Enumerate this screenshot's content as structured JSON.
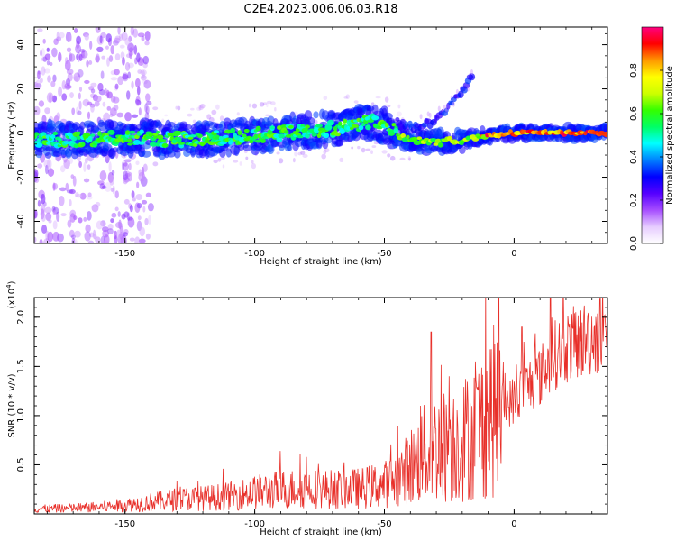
{
  "figure_title": "C2E4.2023.006.06.03.R18",
  "chart_data": [
    {
      "type": "heatmap",
      "xlabel": "Height of straight line (km)",
      "ylabel": "Frequency (Hz)",
      "xlim": [
        -185,
        36
      ],
      "ylim": [
        -50,
        48
      ],
      "x_ticks": [
        -150,
        -100,
        -50,
        0
      ],
      "x_tick_labels": [
        "-150",
        "-100",
        "-50",
        "0"
      ],
      "y_ticks": [
        -40,
        -20,
        0,
        20,
        40
      ],
      "y_tick_labels": [
        "-40",
        "-20",
        "0",
        "20",
        "40"
      ],
      "colorbar": {
        "label": "Normalized spectral amplitude",
        "range": [
          0,
          1
        ],
        "ticks": [
          0.0,
          0.2,
          0.4,
          0.6,
          0.8
        ],
        "tick_labels": [
          "0.0",
          "0.2",
          "0.4",
          "0.6",
          "0.8"
        ],
        "colormap": [
          "#ffffff",
          "#e6ccff",
          "#a64dff",
          "#5500ff",
          "#0000ff",
          "#0080ff",
          "#00ffff",
          "#00ff66",
          "#33ff00",
          "#ccff00",
          "#ffff00",
          "#ff9900",
          "#ff0000",
          "#ff0080"
        ]
      },
      "main_band": [
        [
          -185,
          -3
        ],
        [
          -170,
          -3
        ],
        [
          -150,
          -2
        ],
        [
          -130,
          -3
        ],
        [
          -110,
          -2
        ],
        [
          -90,
          0
        ],
        [
          -70,
          2
        ],
        [
          -60,
          4
        ],
        [
          -55,
          5
        ],
        [
          -48,
          2
        ],
        [
          -42,
          -2
        ],
        [
          -35,
          -4
        ],
        [
          -28,
          -4
        ],
        [
          -20,
          -3
        ],
        [
          -10,
          -1
        ],
        [
          0,
          0
        ],
        [
          10,
          0
        ],
        [
          20,
          0
        ],
        [
          36,
          0
        ]
      ],
      "secondary_branch": [
        [
          -45,
          5
        ],
        [
          -38,
          2
        ],
        [
          -32,
          5
        ],
        [
          -27,
          10
        ],
        [
          -22,
          16
        ],
        [
          -18,
          22
        ],
        [
          -16,
          27
        ]
      ],
      "grid": false
    },
    {
      "type": "line",
      "xlabel": "Height of straight line (km)",
      "ylabel": "SNR (10 * v/v)",
      "y_multiplier": "(x10^4)",
      "xlim": [
        -185,
        36
      ],
      "ylim": [
        0,
        22000
      ],
      "x_ticks": [
        -150,
        -100,
        -50,
        0
      ],
      "x_tick_labels": [
        "-150",
        "-100",
        "-50",
        "0"
      ],
      "y_ticks": [
        5000,
        10000,
        15000,
        20000
      ],
      "y_tick_labels": [
        "0.5",
        "1.0",
        "1.5",
        "2.0"
      ],
      "color": "#e8302a",
      "series": [
        {
          "x": [
            -185,
            -170,
            -160,
            -150,
            -140,
            -130,
            -120,
            -110,
            -100,
            -90,
            -80,
            -70,
            -60,
            -50,
            -45,
            -40,
            -35,
            -30,
            -25,
            -20,
            -15,
            -10,
            -5,
            0,
            5,
            10,
            15,
            20,
            25,
            30,
            36
          ],
          "values": [
            500,
            600,
            700,
            900,
            1200,
            1500,
            1600,
            1800,
            2200,
            2500,
            2600,
            2500,
            2600,
            3000,
            3600,
            4800,
            6000,
            6800,
            7000,
            7500,
            8500,
            10000,
            11000,
            11500,
            13000,
            14000,
            16000,
            17000,
            17500,
            18000,
            18500
          ]
        }
      ],
      "peaks": [
        [
          -138,
          1400
        ],
        [
          -129,
          2000
        ],
        [
          -80,
          5800
        ],
        [
          -36,
          11000
        ],
        [
          -32,
          18500
        ],
        [
          -25,
          14000
        ],
        [
          -15,
          15500
        ],
        [
          3,
          19000
        ],
        [
          14,
          22000
        ]
      ],
      "grid": false
    }
  ]
}
